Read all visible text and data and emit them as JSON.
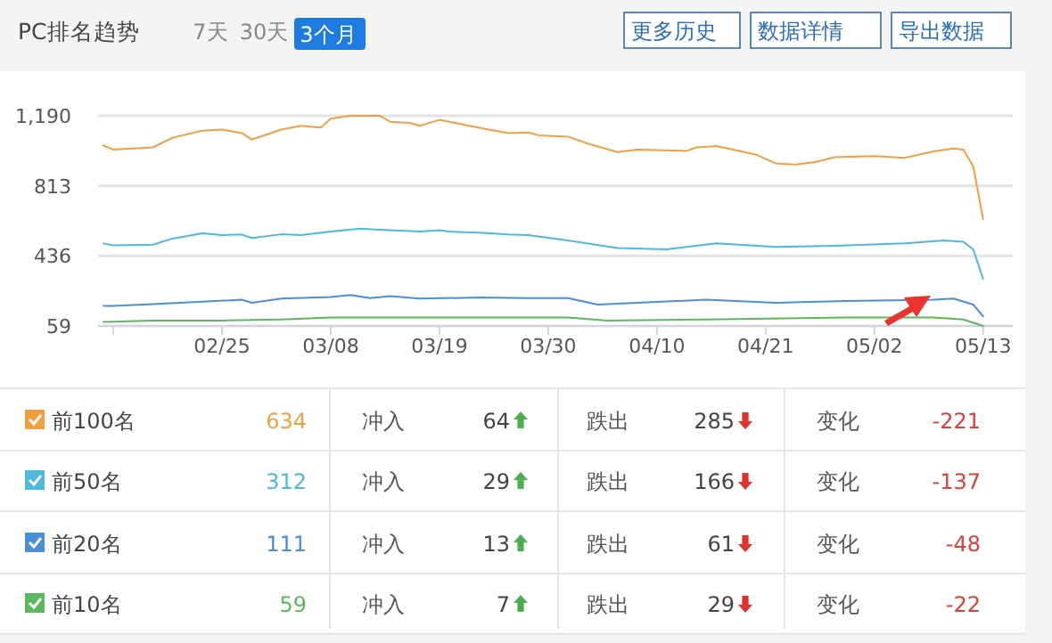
{
  "chart_data": [
    {
      "type": "line",
      "title": "PC排名趋势",
      "annotations": [
        "7天",
        "30天",
        "3个月",
        "更多历史",
        "数据详情",
        "导出数据"
      ],
      "xlim": [
        "--02-13",
        "--05-16"
      ],
      "xticks": [
        {
          "value": "--02-14",
          "label": null
        },
        {
          "value": "--02-25",
          "label": "02/25"
        },
        {
          "value": "--03-08",
          "label": "03/08"
        },
        {
          "value": "--03-19",
          "label": "03/19"
        },
        {
          "value": "--03-30",
          "label": "03/30"
        },
        {
          "value": "--04-10",
          "label": "04/10"
        },
        {
          "value": "--04-21",
          "label": "04/21"
        },
        {
          "value": "--05-02",
          "label": "05/02"
        },
        {
          "value": "--05-13",
          "label": "05/13"
        }
      ],
      "ylim": [
        59,
        1190
      ],
      "yticks": [
        59,
        436,
        813,
        {
          "value": 1190,
          "label": "1,190"
        }
      ],
      "grid": "y",
      "legend": "bottom",
      "series": [
        {
          "name": "前100名",
          "color": "#f0a040",
          "x": [
            "--02-13",
            "--02-14",
            "--02-18",
            "--02-20",
            "--02-23",
            "--02-25",
            "--02-27",
            "--02-28",
            "--03-03",
            "--03-05",
            "--03-07",
            "--03-08",
            "--03-10",
            "--03-13",
            "--03-14",
            "--03-16",
            "--03-17",
            "--03-19",
            "--03-22",
            "--03-24",
            "--03-26",
            "--03-28",
            "--03-29",
            "--04-01",
            "--04-03",
            "--04-06",
            "--04-08",
            "--04-13",
            "--04-14",
            "--04-16",
            "--04-20",
            "--04-22",
            "--04-24",
            "--04-26",
            "--04-28",
            "--05-02",
            "--05-05",
            "--05-08",
            "--05-10",
            "--05-11",
            "--05-12",
            "--05-13"
          ],
          "values": [
            1030,
            1008,
            1020,
            1072,
            1110,
            1116,
            1097,
            1062,
            1116,
            1136,
            1126,
            1174,
            1190,
            1190,
            1158,
            1152,
            1136,
            1168,
            1136,
            1116,
            1097,
            1100,
            1085,
            1078,
            1040,
            995,
            1008,
            1001,
            1020,
            1027,
            982,
            934,
            928,
            941,
            967,
            973,
            963,
            998,
            1014,
            1008,
            918,
            634
          ]
        },
        {
          "name": "前50名",
          "color": "#4fb8dc",
          "x": [
            "--02-13",
            "--02-14",
            "--02-18",
            "--02-20",
            "--02-23",
            "--02-25",
            "--02-27",
            "--02-28",
            "--03-03",
            "--03-05",
            "--03-08",
            "--03-11",
            "--03-13",
            "--03-17",
            "--03-19",
            "--03-20",
            "--03-23",
            "--03-26",
            "--03-28",
            "--04-01",
            "--04-06",
            "--04-11",
            "--04-16",
            "--04-22",
            "--04-28",
            "--05-05",
            "--05-09",
            "--05-11",
            "--05-12",
            "--05-13"
          ],
          "values": [
            503,
            493,
            496,
            529,
            557,
            548,
            551,
            532,
            552,
            548,
            567,
            583,
            577,
            567,
            574,
            567,
            561,
            551,
            548,
            519,
            478,
            471,
            503,
            484,
            490,
            503,
            519,
            512,
            471,
            312
          ]
        },
        {
          "name": "前20名",
          "color": "#4a8fd8",
          "x": [
            "--02-13",
            "--02-14",
            "--02-18",
            "--02-23",
            "--02-27",
            "--02-28",
            "--03-03",
            "--03-08",
            "--03-10",
            "--03-12",
            "--03-14",
            "--03-17",
            "--03-23",
            "--03-28",
            "--04-01",
            "--04-04",
            "--04-08",
            "--04-15",
            "--04-22",
            "--04-29",
            "--05-08",
            "--05-10",
            "--05-12",
            "--05-13"
          ],
          "values": [
            167,
            167,
            177,
            190,
            200,
            184,
            206,
            215,
            225,
            209,
            219,
            206,
            212,
            209,
            209,
            174,
            184,
            200,
            184,
            193,
            200,
            206,
            174,
            111
          ]
        },
        {
          "name": "前10名",
          "color": "#5cb85c",
          "x": [
            "--02-13",
            "--02-18",
            "--02-25",
            "--03-03",
            "--03-08",
            "--03-17",
            "--03-28",
            "--04-01",
            "--04-05",
            "--04-15",
            "--04-29",
            "--05-08",
            "--05-11",
            "--05-13"
          ],
          "values": [
            81,
            88,
            88,
            94,
            104,
            104,
            104,
            104,
            88,
            94,
            104,
            104,
            94,
            59
          ]
        }
      ]
    },
    {
      "type": "other",
      "annotations": [
        "634",
        "冲入",
        "64",
        "跌出",
        "285",
        "变化",
        "-221",
        "312",
        "冲入",
        "29",
        "跌出",
        "166",
        "变化",
        "-137",
        "111",
        "冲入",
        "13",
        "跌出",
        "61",
        "变化",
        "-48",
        "59",
        "冲入",
        "7",
        "跌出",
        "29",
        "变化",
        "-22"
      ]
    }
  ]
}
